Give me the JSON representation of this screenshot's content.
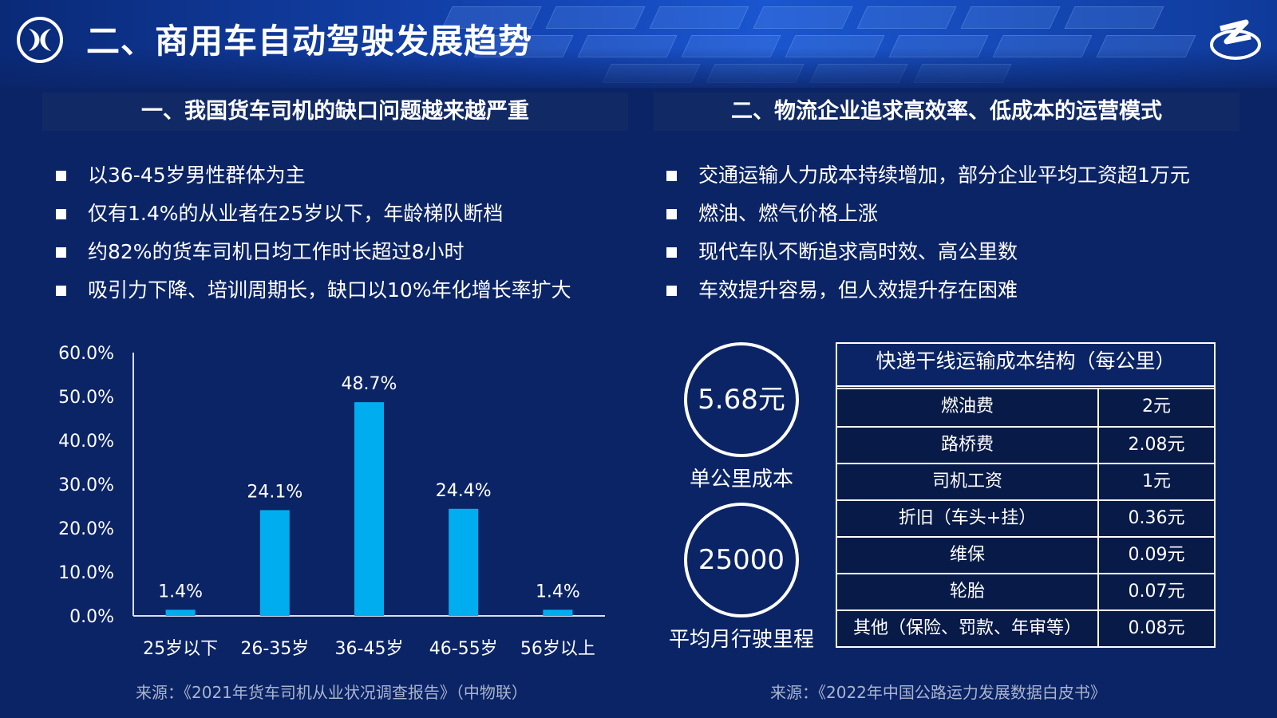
{
  "header": {
    "title": "二、商用车自动驾驶发展趋势"
  },
  "left": {
    "section_title": "一、我国货车司机的缺口问题越来越严重",
    "bullets": [
      "以36-45岁男性群体为主",
      "仅有1.4%的从业者在25岁以下，年龄梯队断档",
      "约82%的货车司机日均工作时长超过8小时",
      "吸引力下降、培训周期长，缺口以10%年化增长率扩大"
    ],
    "source": "来源：《2021年货车司机从业状况调查报告》（中物联）"
  },
  "right": {
    "section_title": "二、物流企业追求高效率、低成本的运营模式",
    "bullets": [
      "交通运输人力成本持续增加，部分企业平均工资超1万元",
      "燃油、燃气价格上涨",
      "现代车队不断追求高时效、高公里数",
      "车效提升容易，但人效提升存在困难"
    ],
    "stats": [
      {
        "value": "5.68元",
        "caption": "单公里成本"
      },
      {
        "value": "25000",
        "caption": "平均月行驶里程"
      }
    ],
    "cost_table": {
      "title": "快递干线运输成本结构（每公里）",
      "rows": [
        {
          "item": "燃油费",
          "value": "2元"
        },
        {
          "item": "路桥费",
          "value": "2.08元"
        },
        {
          "item": "司机工资",
          "value": "1元"
        },
        {
          "item": "折旧（车头+挂）",
          "value": "0.36元"
        },
        {
          "item": "维保",
          "value": "0.09元"
        },
        {
          "item": "轮胎",
          "value": "0.07元"
        },
        {
          "item": "其他（保险、罚款、年审等）",
          "value": "0.08元"
        }
      ]
    },
    "source": "来源：《2022年中国公路运力发展数据白皮书》"
  },
  "colors": {
    "background": "#0b2466",
    "bar": "#00aeef",
    "text": "#ffffff",
    "source_text": "#aab4cc"
  },
  "chart_data": {
    "type": "bar",
    "categories": [
      "25岁以下",
      "26-35岁",
      "36-45岁",
      "46-55岁",
      "56岁以上"
    ],
    "values": [
      1.4,
      24.1,
      48.7,
      24.4,
      1.4
    ],
    "data_labels": [
      "1.4%",
      "24.1%",
      "48.7%",
      "24.4%",
      "1.4%"
    ],
    "yticks": [
      "0.0%",
      "10.0%",
      "20.0%",
      "30.0%",
      "40.0%",
      "50.0%",
      "60.0%"
    ],
    "ylim": [
      0,
      60
    ],
    "title": "",
    "xlabel": "",
    "ylabel": "",
    "grid": false,
    "legend": "none"
  }
}
